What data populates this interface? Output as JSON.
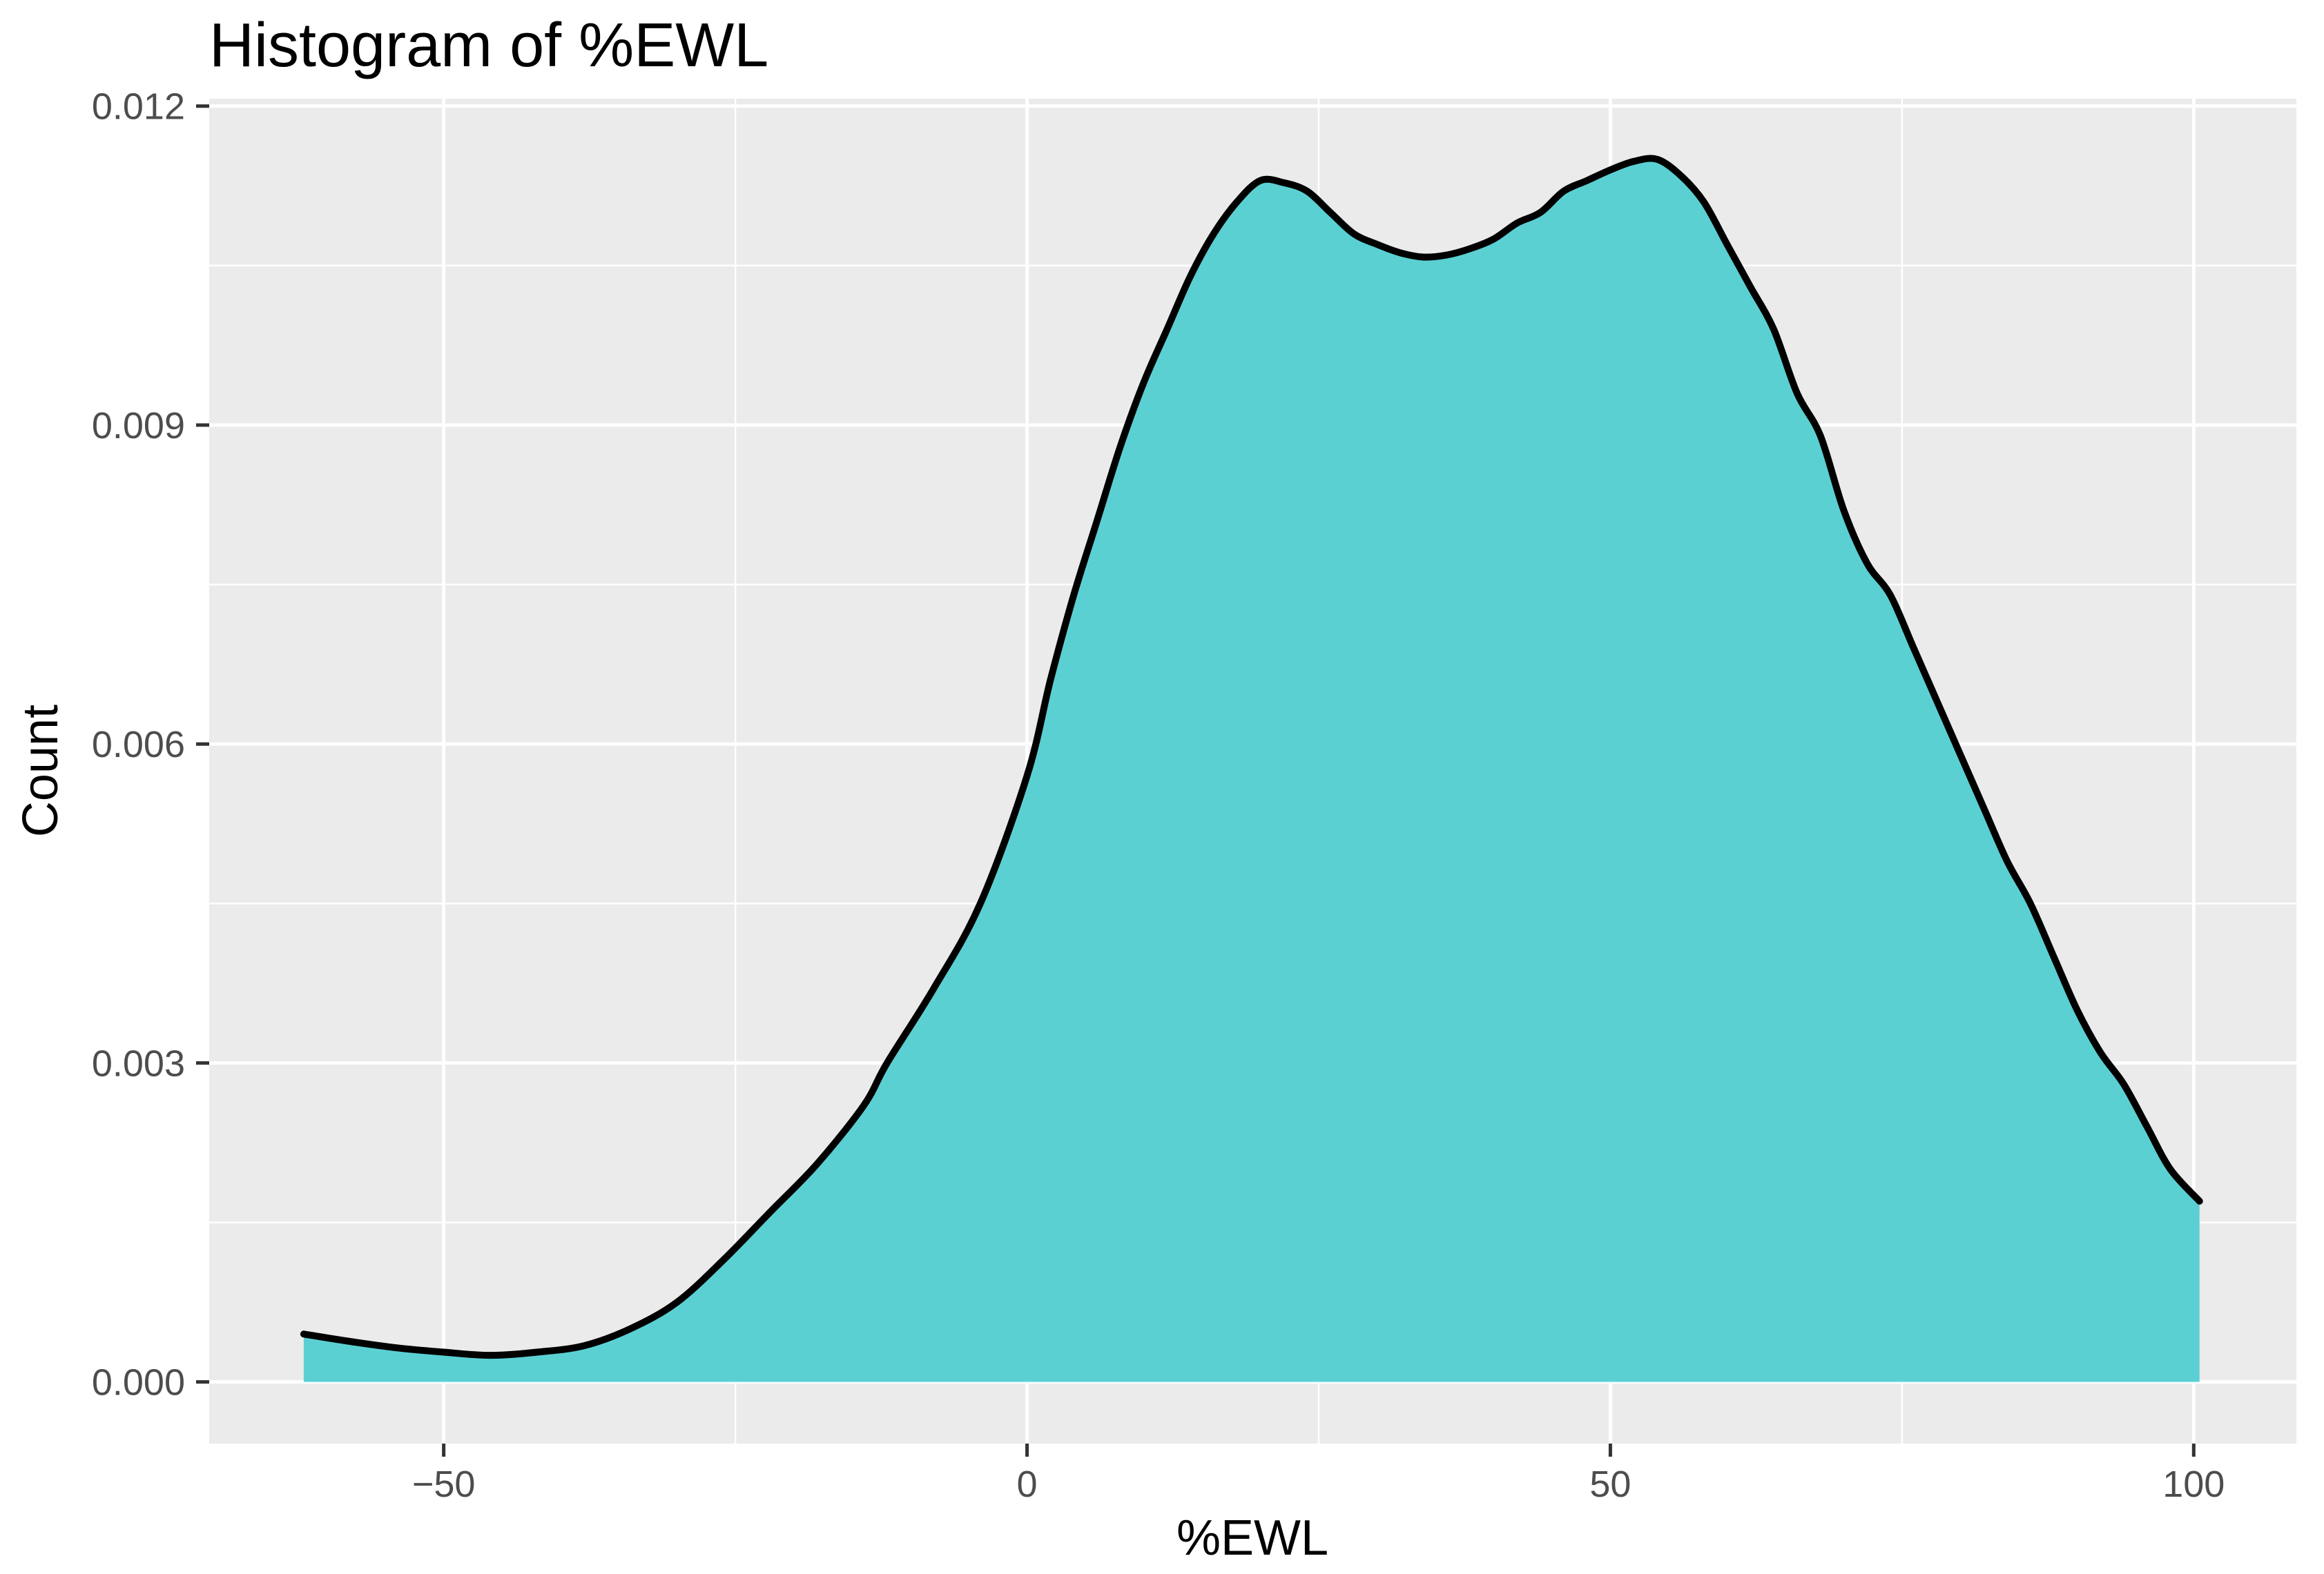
{
  "title": "Histogram of %EWL",
  "chart_data": {
    "type": "area",
    "subtype": "density",
    "title": "Histogram of %EWL",
    "xlabel": "%EWL",
    "ylabel": "Count",
    "legend": false,
    "grid": true,
    "xlim": [
      -70.1,
      108.8
    ],
    "ylim": [
      -0.00058,
      0.01207
    ],
    "x_ticks": {
      "values": [
        -50,
        0,
        50,
        100
      ],
      "labels": [
        "−50",
        "0",
        "50",
        "100"
      ]
    },
    "y_ticks": {
      "values": [
        0,
        0.003,
        0.006,
        0.009,
        0.012
      ],
      "labels": [
        "0.000",
        "0.003",
        "0.006",
        "0.009",
        "0.012"
      ]
    },
    "x_minor": [
      -25,
      25,
      75
    ],
    "y_minor": [
      0.0015,
      0.0045,
      0.0075,
      0.0105
    ],
    "baseline": 0,
    "series": [
      {
        "name": "density",
        "points": [
          [
            -62,
            0.00045
          ],
          [
            -58,
            0.00038
          ],
          [
            -54,
            0.00032
          ],
          [
            -50,
            0.00028
          ],
          [
            -46,
            0.00025
          ],
          [
            -42,
            0.00028
          ],
          [
            -38,
            0.00034
          ],
          [
            -34,
            0.0005
          ],
          [
            -30,
            0.00075
          ],
          [
            -26,
            0.00115
          ],
          [
            -22,
            0.0016
          ],
          [
            -18,
            0.00205
          ],
          [
            -14,
            0.0026
          ],
          [
            -12,
            0.003
          ],
          [
            -8,
            0.0037
          ],
          [
            -4,
            0.0045
          ],
          [
            0,
            0.0057
          ],
          [
            2,
            0.0066
          ],
          [
            4,
            0.0074
          ],
          [
            6,
            0.0081
          ],
          [
            8,
            0.0088
          ],
          [
            10,
            0.0094
          ],
          [
            12,
            0.0099
          ],
          [
            14,
            0.0104
          ],
          [
            16,
            0.0108
          ],
          [
            18,
            0.0111
          ],
          [
            20,
            0.0113
          ],
          [
            22,
            0.01128
          ],
          [
            24,
            0.0112
          ],
          [
            26,
            0.011
          ],
          [
            28,
            0.0108
          ],
          [
            30,
            0.0107
          ],
          [
            32,
            0.01062
          ],
          [
            34,
            0.01058
          ],
          [
            36,
            0.0106
          ],
          [
            38,
            0.01066
          ],
          [
            40,
            0.01075
          ],
          [
            42,
            0.0109
          ],
          [
            44,
            0.011
          ],
          [
            46,
            0.0112
          ],
          [
            48,
            0.0113
          ],
          [
            50,
            0.0114
          ],
          [
            52,
            0.01148
          ],
          [
            54,
            0.0115
          ],
          [
            56,
            0.01135
          ],
          [
            58,
            0.0111
          ],
          [
            60,
            0.0107
          ],
          [
            62,
            0.0103
          ],
          [
            64,
            0.0099
          ],
          [
            66,
            0.0093
          ],
          [
            68,
            0.0089
          ],
          [
            70,
            0.0082
          ],
          [
            72,
            0.0077
          ],
          [
            74,
            0.0074
          ],
          [
            76,
            0.0069
          ],
          [
            78,
            0.0064
          ],
          [
            80,
            0.0059
          ],
          [
            82,
            0.0054
          ],
          [
            84,
            0.0049
          ],
          [
            86,
            0.0045
          ],
          [
            88,
            0.004
          ],
          [
            90,
            0.0035
          ],
          [
            92,
            0.0031
          ],
          [
            94,
            0.0028
          ],
          [
            96,
            0.0024
          ],
          [
            98,
            0.002
          ],
          [
            100.5,
            0.0017
          ]
        ]
      }
    ],
    "colors": {
      "fill": "#5BD0D3",
      "line": "#000000",
      "panel_bg": "#EBEBEB",
      "grid": "#FFFFFF",
      "tick_label": "#4D4D4D",
      "tick_mark": "#333333",
      "title_text": "#000000",
      "page_bg": "#FFFFFF"
    }
  }
}
